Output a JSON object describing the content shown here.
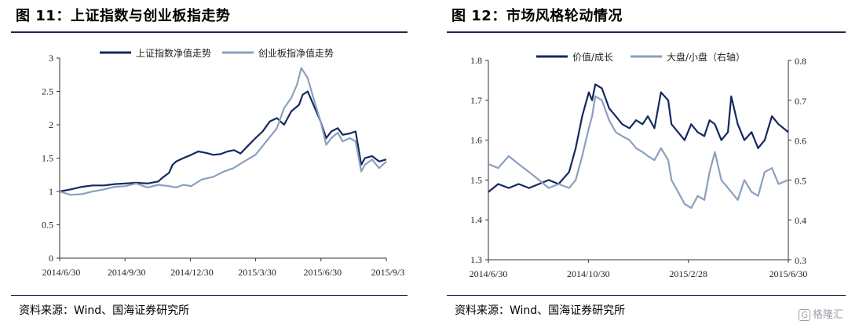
{
  "left": {
    "title": "图 11：上证指数与创业板指走势",
    "source": "资料来源：Wind、国海证券研究所"
  },
  "right": {
    "title": "图 12：市场风格轮动情况",
    "source": "资料来源：Wind、国海证券研究所"
  },
  "watermark": {
    "box": "G",
    "text": "格隆汇"
  },
  "colors": {
    "dark": "#13295e",
    "light": "#8aa0bd",
    "axis": "#333333"
  },
  "chart_data": [
    {
      "type": "line",
      "title": "",
      "x_ticks": [
        "2014/6/30",
        "2014/9/30",
        "2014/12/30",
        "2015/3/30",
        "2015/6/30",
        "2015/9/3"
      ],
      "xlim": [
        "2014-06-30",
        "2015-09-30"
      ],
      "ylim": [
        0,
        3
      ],
      "y_ticks": [
        0,
        0.5,
        1,
        1.5,
        2,
        2.5,
        3
      ],
      "y_tick_labels": [
        "0",
        "0.5",
        "1",
        "1.5",
        "2",
        "2.5",
        "3"
      ],
      "legend_position": "top-right",
      "grid": false,
      "series": [
        {
          "name": "上证指数净值走势",
          "color": "dark",
          "x": [
            "2014-06-30",
            "2014-07-15",
            "2014-07-31",
            "2014-08-15",
            "2014-08-31",
            "2014-09-15",
            "2014-09-30",
            "2014-10-15",
            "2014-10-31",
            "2014-11-15",
            "2014-11-20",
            "2014-11-30",
            "2014-12-05",
            "2014-12-10",
            "2014-12-20",
            "2014-12-31",
            "2015-01-10",
            "2015-01-20",
            "2015-01-31",
            "2015-02-10",
            "2015-02-20",
            "2015-03-01",
            "2015-03-10",
            "2015-03-20",
            "2015-03-31",
            "2015-04-10",
            "2015-04-20",
            "2015-04-30",
            "2015-05-10",
            "2015-05-20",
            "2015-05-31",
            "2015-06-05",
            "2015-06-12",
            "2015-06-20",
            "2015-06-30",
            "2015-07-08",
            "2015-07-15",
            "2015-07-24",
            "2015-07-31",
            "2015-08-10",
            "2015-08-18",
            "2015-08-26",
            "2015-08-31",
            "2015-09-10",
            "2015-09-20",
            "2015-09-30"
          ],
          "y": [
            1.0,
            1.03,
            1.07,
            1.09,
            1.09,
            1.11,
            1.12,
            1.13,
            1.12,
            1.15,
            1.2,
            1.28,
            1.4,
            1.45,
            1.5,
            1.55,
            1.6,
            1.58,
            1.55,
            1.56,
            1.6,
            1.62,
            1.57,
            1.68,
            1.8,
            1.9,
            2.05,
            2.1,
            2.0,
            2.2,
            2.3,
            2.45,
            2.5,
            2.3,
            2.05,
            1.8,
            1.9,
            1.95,
            1.85,
            1.87,
            1.9,
            1.4,
            1.5,
            1.53,
            1.45,
            1.48
          ]
        },
        {
          "name": "创业板指净值走势",
          "color": "light",
          "x": [
            "2014-06-30",
            "2014-07-15",
            "2014-07-31",
            "2014-08-15",
            "2014-08-31",
            "2014-09-15",
            "2014-09-30",
            "2014-10-15",
            "2014-10-31",
            "2014-11-15",
            "2014-11-30",
            "2014-12-10",
            "2014-12-20",
            "2014-12-31",
            "2015-01-15",
            "2015-01-31",
            "2015-02-15",
            "2015-02-28",
            "2015-03-15",
            "2015-03-31",
            "2015-04-15",
            "2015-04-30",
            "2015-05-10",
            "2015-05-20",
            "2015-05-28",
            "2015-06-03",
            "2015-06-12",
            "2015-06-20",
            "2015-06-30",
            "2015-07-08",
            "2015-07-15",
            "2015-07-24",
            "2015-07-31",
            "2015-08-10",
            "2015-08-18",
            "2015-08-26",
            "2015-08-31",
            "2015-09-10",
            "2015-09-20",
            "2015-09-30"
          ],
          "y": [
            1.0,
            0.95,
            0.96,
            1.0,
            1.03,
            1.07,
            1.08,
            1.12,
            1.06,
            1.1,
            1.08,
            1.06,
            1.1,
            1.08,
            1.18,
            1.22,
            1.3,
            1.35,
            1.45,
            1.55,
            1.75,
            1.95,
            2.25,
            2.4,
            2.6,
            2.85,
            2.7,
            2.4,
            2.05,
            1.7,
            1.8,
            1.88,
            1.75,
            1.8,
            1.75,
            1.3,
            1.4,
            1.48,
            1.35,
            1.45
          ]
        }
      ]
    },
    {
      "type": "line",
      "title": "",
      "x_ticks": [
        "2014/6/30",
        "2014/10/30",
        "2015/2/28",
        "2015/6/30"
      ],
      "xlim": [
        "2014-06-30",
        "2015-09-30"
      ],
      "ylim": [
        1.3,
        1.8
      ],
      "y_ticks": [
        1.3,
        1.4,
        1.5,
        1.6,
        1.7,
        1.8
      ],
      "y_tick_labels": [
        "1.3",
        "1.4",
        "1.5",
        "1.6",
        "1.7",
        "1.8"
      ],
      "y2lim": [
        0.3,
        0.8
      ],
      "y2_ticks": [
        0.3,
        0.4,
        0.5,
        0.6,
        0.7,
        0.8
      ],
      "y2_tick_labels": [
        "0.3",
        "0.4",
        "0.5",
        "0.6",
        "0.7",
        "0.8"
      ],
      "legend_position": "top",
      "grid": false,
      "series": [
        {
          "name": "价值/成长",
          "axis": "left",
          "color": "dark",
          "x": [
            "2014-06-30",
            "2014-07-15",
            "2014-07-31",
            "2014-08-15",
            "2014-08-31",
            "2014-09-15",
            "2014-09-30",
            "2014-10-15",
            "2014-10-31",
            "2014-11-10",
            "2014-11-20",
            "2014-11-30",
            "2014-12-05",
            "2014-12-10",
            "2014-12-20",
            "2014-12-31",
            "2015-01-10",
            "2015-01-20",
            "2015-01-31",
            "2015-02-10",
            "2015-02-20",
            "2015-02-28",
            "2015-03-10",
            "2015-03-20",
            "2015-03-31",
            "2015-04-05",
            "2015-04-15",
            "2015-04-25",
            "2015-05-05",
            "2015-05-15",
            "2015-05-25",
            "2015-06-02",
            "2015-06-10",
            "2015-06-20",
            "2015-06-30",
            "2015-07-05",
            "2015-07-15",
            "2015-07-25",
            "2015-08-05",
            "2015-08-15",
            "2015-08-25",
            "2015-09-05",
            "2015-09-15",
            "2015-09-30"
          ],
          "y": [
            1.47,
            1.49,
            1.48,
            1.49,
            1.48,
            1.49,
            1.5,
            1.49,
            1.52,
            1.58,
            1.66,
            1.72,
            1.7,
            1.74,
            1.73,
            1.68,
            1.66,
            1.64,
            1.63,
            1.65,
            1.64,
            1.66,
            1.63,
            1.72,
            1.7,
            1.64,
            1.62,
            1.6,
            1.64,
            1.62,
            1.61,
            1.65,
            1.64,
            1.6,
            1.62,
            1.71,
            1.64,
            1.6,
            1.62,
            1.58,
            1.6,
            1.66,
            1.64,
            1.62
          ]
        },
        {
          "name": "大盘/小盘（右轴）",
          "axis": "right",
          "color": "light",
          "x": [
            "2014-06-30",
            "2014-07-15",
            "2014-07-31",
            "2014-08-15",
            "2014-08-31",
            "2014-09-15",
            "2014-09-30",
            "2014-10-15",
            "2014-10-31",
            "2014-11-10",
            "2014-11-20",
            "2014-11-30",
            "2014-12-05",
            "2014-12-10",
            "2014-12-20",
            "2014-12-31",
            "2015-01-10",
            "2015-01-20",
            "2015-01-31",
            "2015-02-10",
            "2015-02-20",
            "2015-02-28",
            "2015-03-10",
            "2015-03-20",
            "2015-03-31",
            "2015-04-05",
            "2015-04-15",
            "2015-04-25",
            "2015-05-05",
            "2015-05-15",
            "2015-05-25",
            "2015-06-02",
            "2015-06-10",
            "2015-06-20",
            "2015-06-30",
            "2015-07-05",
            "2015-07-15",
            "2015-07-25",
            "2015-08-05",
            "2015-08-15",
            "2015-08-25",
            "2015-09-05",
            "2015-09-15",
            "2015-09-30"
          ],
          "y": [
            0.54,
            0.53,
            0.56,
            0.54,
            0.52,
            0.5,
            0.48,
            0.49,
            0.48,
            0.5,
            0.56,
            0.63,
            0.66,
            0.71,
            0.7,
            0.65,
            0.62,
            0.61,
            0.6,
            0.58,
            0.57,
            0.56,
            0.55,
            0.58,
            0.55,
            0.5,
            0.47,
            0.44,
            0.43,
            0.46,
            0.45,
            0.52,
            0.57,
            0.5,
            0.48,
            0.47,
            0.45,
            0.5,
            0.47,
            0.46,
            0.52,
            0.53,
            0.49,
            0.5
          ]
        }
      ]
    }
  ]
}
